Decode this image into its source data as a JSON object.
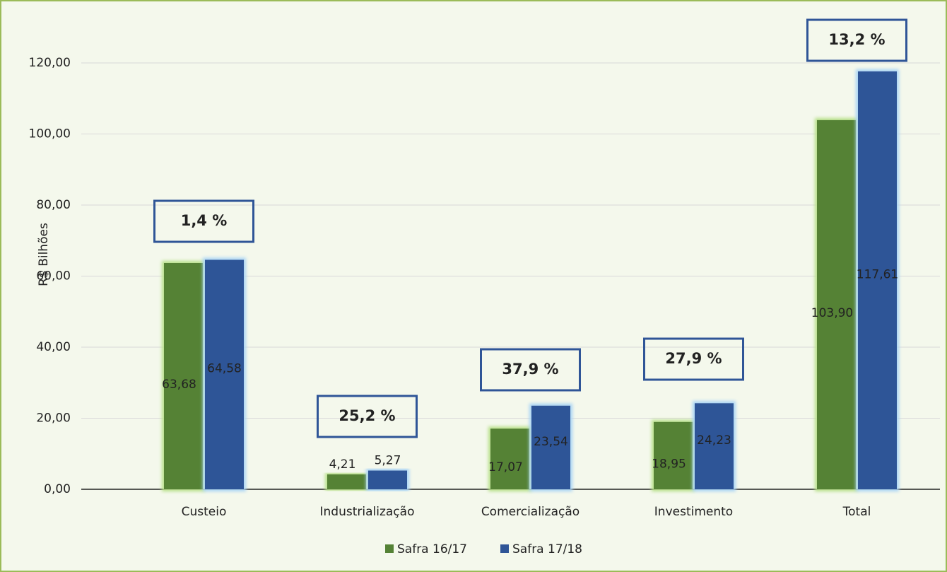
{
  "chart_data": {
    "type": "bar",
    "y_label": "R$ Bilhões",
    "categories": [
      "Custeio",
      "Industrialização",
      "Comercialização",
      "Investimento",
      "Total"
    ],
    "series": [
      {
        "name": "Safra 16/17",
        "color": "#548235",
        "values": [
          63.68,
          4.21,
          17.07,
          18.95,
          103.9
        ],
        "value_labels": [
          "63,68",
          "4,21",
          "17,07",
          "18,95",
          "103,90"
        ]
      },
      {
        "name": "Safra 17/18",
        "color": "#2f5597",
        "values": [
          64.58,
          5.27,
          23.54,
          24.23,
          117.61
        ],
        "value_labels": [
          "64,58",
          "5,27",
          "23,54",
          "24,23",
          "117,61"
        ]
      }
    ],
    "annotations": [
      "1,4 %",
      "25,2 %",
      "37,9 %",
      "27,9 %",
      "13,2 %"
    ],
    "ylim": [
      0,
      120
    ],
    "yticks": [
      {
        "value": 0,
        "label": "0,00"
      },
      {
        "value": 20,
        "label": "20,00"
      },
      {
        "value": 40,
        "label": "40,00"
      },
      {
        "value": 60,
        "label": "60,00"
      },
      {
        "value": 80,
        "label": "80,00"
      },
      {
        "value": 100,
        "label": "100,00"
      },
      {
        "value": 120,
        "label": "120,00"
      }
    ],
    "grid": true,
    "legend": "bottom"
  }
}
